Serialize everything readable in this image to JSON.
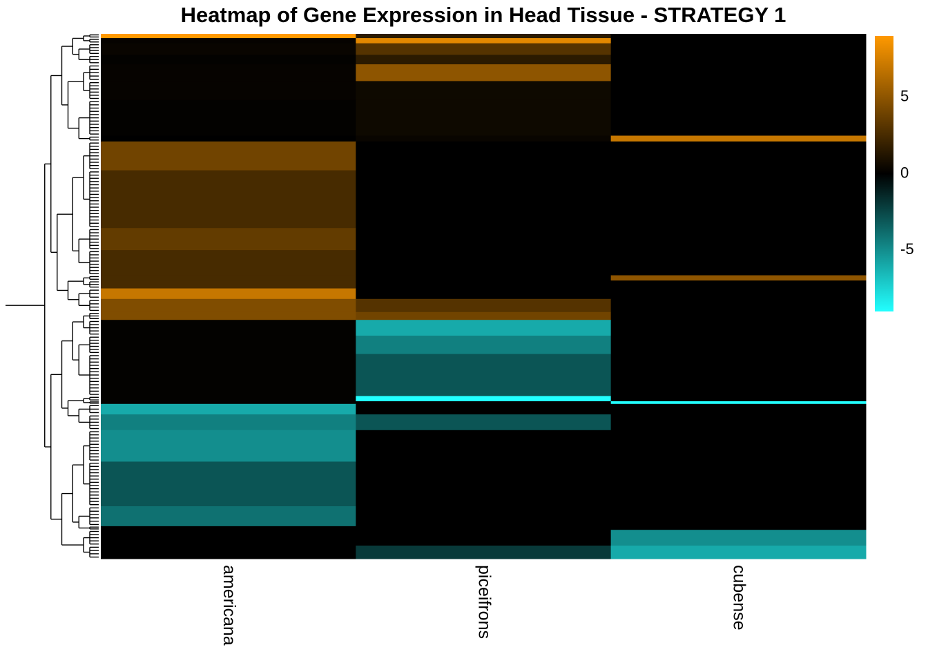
{
  "chart_data": {
    "type": "heatmap",
    "title": "Heatmap of Gene Expression in Head Tissue - STRATEGY 1",
    "columns": [
      "americana",
      "piceifrons",
      "cubense"
    ],
    "row_dendrogram": true,
    "color_scale": {
      "low": "#22FFFF",
      "mid": "#000000",
      "high": "#FF9900",
      "range": [
        -9,
        9
      ],
      "ticks": [
        5,
        0,
        -5
      ]
    },
    "n_rows": 1000,
    "segments": [
      {
        "rows": [
          0,
          8
        ],
        "values": [
          9,
          1.5,
          0
        ]
      },
      {
        "rows": [
          8,
          18
        ],
        "values": [
          0.2,
          8,
          0
        ]
      },
      {
        "rows": [
          18,
          40
        ],
        "values": [
          0.3,
          3,
          0
        ]
      },
      {
        "rows": [
          40,
          58
        ],
        "values": [
          0.1,
          1.5,
          0
        ]
      },
      {
        "rows": [
          58,
          90
        ],
        "values": [
          0.2,
          5,
          0
        ]
      },
      {
        "rows": [
          90,
          126
        ],
        "values": [
          0.2,
          0.5,
          0
        ]
      },
      {
        "rows": [
          126,
          194
        ],
        "values": [
          0.1,
          0.5,
          0
        ]
      },
      {
        "rows": [
          194,
          205
        ],
        "values": [
          0,
          0.3,
          7
        ]
      },
      {
        "rows": [
          205,
          260
        ],
        "values": [
          4,
          0,
          0
        ]
      },
      {
        "rows": [
          260,
          370
        ],
        "values": [
          2.5,
          0,
          0
        ]
      },
      {
        "rows": [
          370,
          412
        ],
        "values": [
          3.5,
          0,
          0
        ]
      },
      {
        "rows": [
          412,
          460
        ],
        "values": [
          2.5,
          0,
          0
        ]
      },
      {
        "rows": [
          460,
          470
        ],
        "values": [
          2.5,
          0,
          5
        ]
      },
      {
        "rows": [
          470,
          485
        ],
        "values": [
          2.5,
          0,
          0
        ]
      },
      {
        "rows": [
          485,
          505
        ],
        "values": [
          7,
          0,
          0
        ]
      },
      {
        "rows": [
          505,
          530
        ],
        "values": [
          4.5,
          3,
          0
        ]
      },
      {
        "rows": [
          530,
          545
        ],
        "values": [
          4.5,
          4,
          0
        ]
      },
      {
        "rows": [
          545,
          575
        ],
        "values": [
          0.1,
          -6,
          0
        ]
      },
      {
        "rows": [
          575,
          610
        ],
        "values": [
          0.1,
          -4.5,
          0
        ]
      },
      {
        "rows": [
          610,
          690
        ],
        "values": [
          0.1,
          -3,
          0
        ]
      },
      {
        "rows": [
          690,
          700
        ],
        "values": [
          0.1,
          -9,
          0
        ]
      },
      {
        "rows": [
          700,
          705
        ],
        "values": [
          0.1,
          0,
          -9
        ]
      },
      {
        "rows": [
          705,
          725
        ],
        "values": [
          -6,
          0,
          0
        ]
      },
      {
        "rows": [
          725,
          755
        ],
        "values": [
          -4.5,
          -3,
          0
        ]
      },
      {
        "rows": [
          755,
          815
        ],
        "values": [
          -5,
          0,
          0
        ]
      },
      {
        "rows": [
          815,
          900
        ],
        "values": [
          -3,
          0,
          0
        ]
      },
      {
        "rows": [
          900,
          938
        ],
        "values": [
          -4,
          0,
          0
        ]
      },
      {
        "rows": [
          938,
          945
        ],
        "values": [
          0,
          0,
          0
        ]
      },
      {
        "rows": [
          945,
          975
        ],
        "values": [
          0,
          0,
          -5
        ]
      },
      {
        "rows": [
          975,
          1000
        ],
        "values": [
          0,
          -2,
          -6
        ]
      }
    ]
  }
}
